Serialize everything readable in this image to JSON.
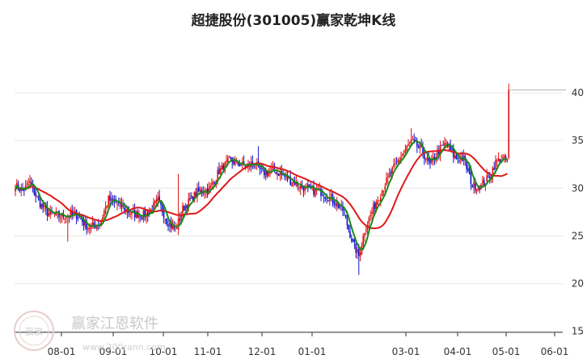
{
  "chart_data": {
    "type": "candlestick",
    "title": "超捷股份(301005)赢家乾坤K线",
    "xlabel": "",
    "ylabel": "",
    "ylim": [
      15,
      42
    ],
    "y_ticks": [
      15,
      20,
      25,
      30,
      35,
      40
    ],
    "x_tick_labels": [
      "08-01",
      "09-01",
      "10-01",
      "11-01",
      "12-01",
      "01-01",
      "03-01",
      "04-01",
      "05-01",
      "06-01"
    ],
    "grid": true,
    "up_color": "#dd1111",
    "down_color": "#1111cc",
    "ma_short_color": "#1a8a1a",
    "ma_long_color": "#e01818",
    "last_price": 40.3,
    "waypoints": [
      {
        "d": 0,
        "v": 30.3
      },
      {
        "d": 5,
        "v": 29.7
      },
      {
        "d": 10,
        "v": 30.6
      },
      {
        "d": 16,
        "v": 28.6
      },
      {
        "d": 22,
        "v": 27.4
      },
      {
        "d": 30,
        "v": 27.1
      },
      {
        "d": 42,
        "v": 27.2
      },
      {
        "d": 50,
        "v": 25.9
      },
      {
        "d": 58,
        "v": 26.3
      },
      {
        "d": 64,
        "v": 28.8
      },
      {
        "d": 72,
        "v": 28.2
      },
      {
        "d": 80,
        "v": 27.3
      },
      {
        "d": 90,
        "v": 27.2
      },
      {
        "d": 98,
        "v": 28.7
      },
      {
        "d": 104,
        "v": 26.6
      },
      {
        "d": 110,
        "v": 25.6
      },
      {
        "d": 115,
        "v": 27.8
      },
      {
        "d": 125,
        "v": 29.6
      },
      {
        "d": 133,
        "v": 29.8
      },
      {
        "d": 140,
        "v": 31.8
      },
      {
        "d": 147,
        "v": 32.9
      },
      {
        "d": 158,
        "v": 32.3
      },
      {
        "d": 164,
        "v": 32.6
      },
      {
        "d": 170,
        "v": 31.6
      },
      {
        "d": 178,
        "v": 31.9
      },
      {
        "d": 188,
        "v": 30.9
      },
      {
        "d": 200,
        "v": 29.9
      },
      {
        "d": 210,
        "v": 29.6
      },
      {
        "d": 218,
        "v": 28.8
      },
      {
        "d": 225,
        "v": 27.7
      },
      {
        "d": 232,
        "v": 24.2
      },
      {
        "d": 236,
        "v": 22.9
      },
      {
        "d": 240,
        "v": 25.6
      },
      {
        "d": 246,
        "v": 27.9
      },
      {
        "d": 252,
        "v": 29.8
      },
      {
        "d": 258,
        "v": 31.6
      },
      {
        "d": 266,
        "v": 33.6
      },
      {
        "d": 272,
        "v": 34.9
      },
      {
        "d": 278,
        "v": 34.2
      },
      {
        "d": 285,
        "v": 32.4
      },
      {
        "d": 290,
        "v": 33.8
      },
      {
        "d": 296,
        "v": 34.7
      },
      {
        "d": 302,
        "v": 33.2
      },
      {
        "d": 308,
        "v": 33.1
      },
      {
        "d": 314,
        "v": 30.3
      },
      {
        "d": 320,
        "v": 30.2
      },
      {
        "d": 326,
        "v": 31.3
      },
      {
        "d": 330,
        "v": 32.7
      },
      {
        "d": 334,
        "v": 33.1
      },
      {
        "d": 338,
        "v": 32.9
      },
      {
        "d": 339,
        "v": 40.3
      }
    ],
    "watermark": {
      "brand": "赢家江恩软件",
      "url": "www.300rann.com",
      "seal": "赢家"
    }
  }
}
